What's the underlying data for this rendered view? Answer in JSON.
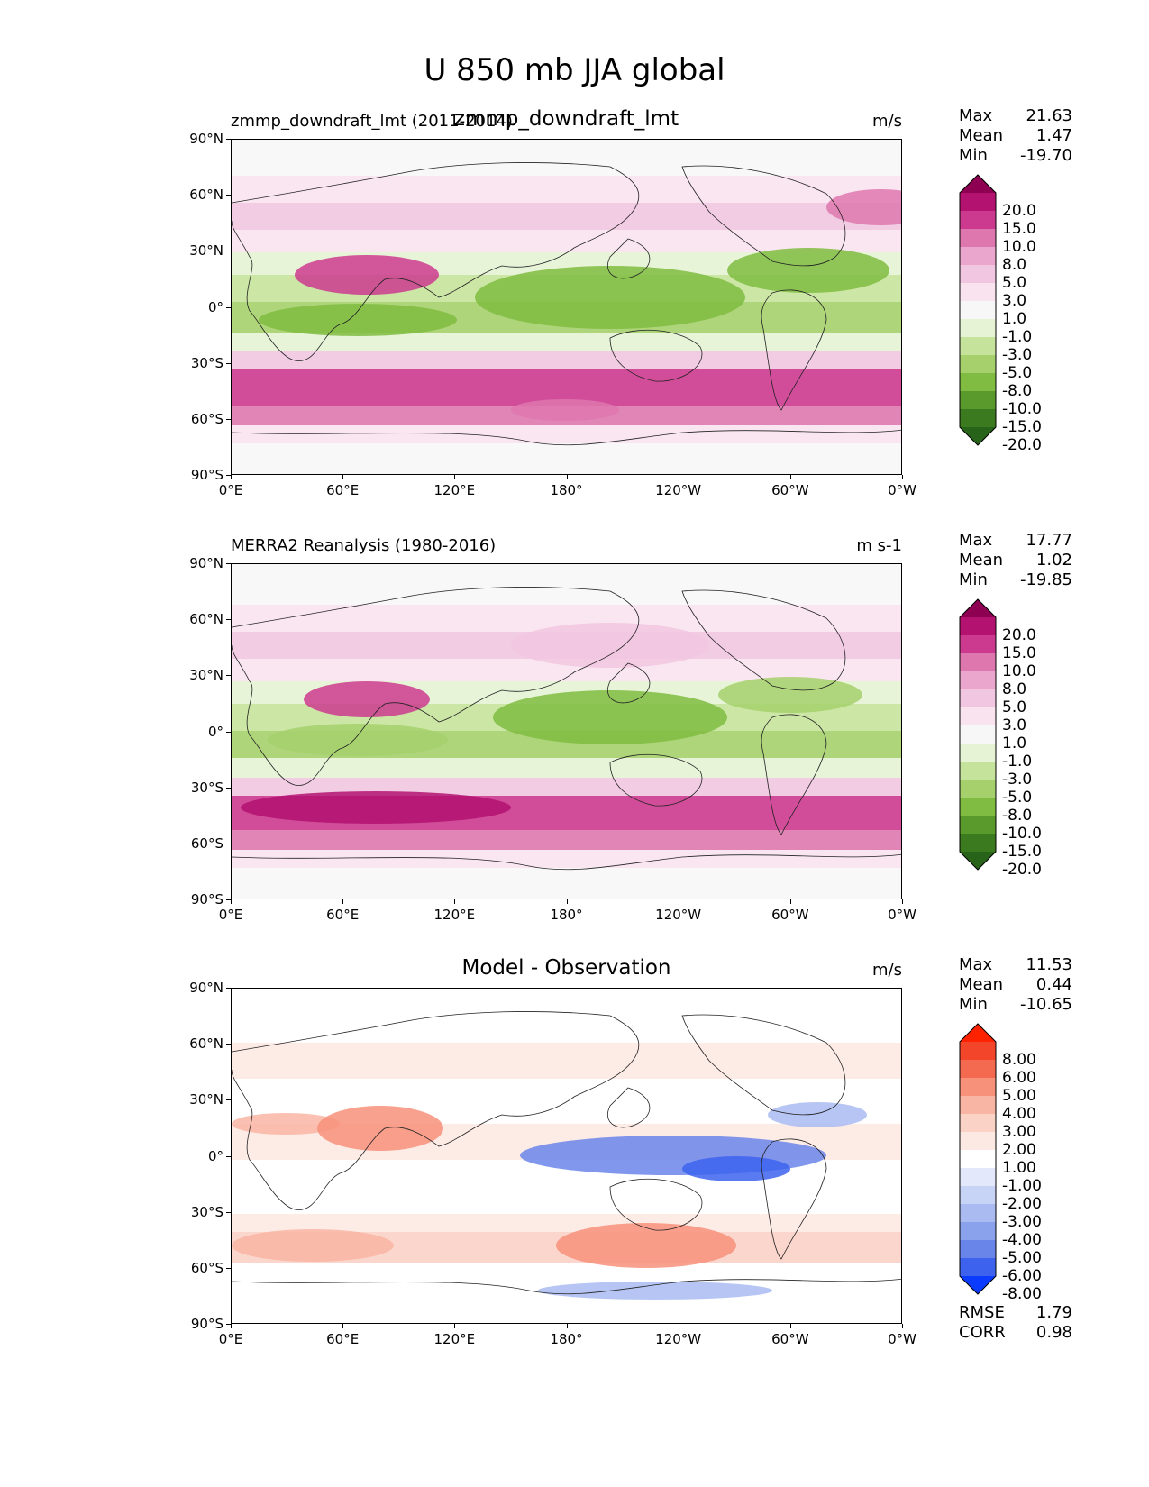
{
  "figure_title": "U 850 mb JJA global",
  "latitude_ticks": [
    "90°N",
    "60°N",
    "30°N",
    "0°",
    "30°S",
    "60°S",
    "90°S"
  ],
  "longitude_ticks": [
    "0°E",
    "60°E",
    "120°E",
    "180°",
    "120°W",
    "60°W",
    "0°W"
  ],
  "chart_data": [
    {
      "type": "heatmap",
      "subplot": "model",
      "left_title": "zmmp_downdraft_lmt (2011-2014)",
      "center_title": "zmmp_downdraft_lmt",
      "units": "m/s",
      "stats": {
        "max_label": "Max",
        "max": "21.63",
        "mean_label": "Mean",
        "mean": "1.47",
        "min_label": "Min",
        "min": "-19.70"
      },
      "colorbar_levels": [
        "20.0",
        "15.0",
        "10.0",
        "8.0",
        "5.0",
        "3.0",
        "1.0",
        "-1.0",
        "-3.0",
        "-5.0",
        "-8.0",
        "-10.0",
        "-15.0",
        "-20.0"
      ],
      "colors": [
        "#8e0152",
        "#b31270",
        "#cc3a8f",
        "#de77ae",
        "#eaa6cd",
        "#f1c6e0",
        "#f9e3ef",
        "#f7f7f7",
        "#e6f3d4",
        "#c6e39b",
        "#a5d06c",
        "#7fbc41",
        "#5a9a2c",
        "#3b7a1e",
        "#276419"
      ],
      "xlim": [
        0,
        360
      ],
      "ylim": [
        -90,
        90
      ]
    },
    {
      "type": "heatmap",
      "subplot": "observation",
      "left_title": "MERRA2 Reanalysis (1980-2016)",
      "center_title": "",
      "units": "m s-1",
      "stats": {
        "max_label": "Max",
        "max": "17.77",
        "mean_label": "Mean",
        "mean": "1.02",
        "min_label": "Min",
        "min": "-19.85"
      },
      "colorbar_levels": [
        "20.0",
        "15.0",
        "10.0",
        "8.0",
        "5.0",
        "3.0",
        "1.0",
        "-1.0",
        "-3.0",
        "-5.0",
        "-8.0",
        "-10.0",
        "-15.0",
        "-20.0"
      ],
      "colors": [
        "#8e0152",
        "#b31270",
        "#cc3a8f",
        "#de77ae",
        "#eaa6cd",
        "#f1c6e0",
        "#f9e3ef",
        "#f7f7f7",
        "#e6f3d4",
        "#c6e39b",
        "#a5d06c",
        "#7fbc41",
        "#5a9a2c",
        "#3b7a1e",
        "#276419"
      ],
      "xlim": [
        0,
        360
      ],
      "ylim": [
        -90,
        90
      ]
    },
    {
      "type": "heatmap",
      "subplot": "difference",
      "left_title": "",
      "center_title": "Model - Observation",
      "units": "m/s",
      "stats": {
        "max_label": "Max",
        "max": "11.53",
        "mean_label": "Mean",
        "mean": "0.44",
        "min_label": "Min",
        "min": "-10.65"
      },
      "metrics": {
        "rmse_label": "RMSE",
        "rmse": "1.79",
        "corr_label": "CORR",
        "corr": "0.98"
      },
      "colorbar_levels": [
        "8.00",
        "6.00",
        "5.00",
        "4.00",
        "3.00",
        "2.00",
        "1.00",
        "-1.00",
        "-2.00",
        "-3.00",
        "-4.00",
        "-5.00",
        "-6.00",
        "-8.00"
      ],
      "colors": [
        "#ff2200",
        "#f2452a",
        "#f46a50",
        "#f7917a",
        "#f9b5a3",
        "#fbd2c6",
        "#fde9e3",
        "#ffffff",
        "#e3e9fb",
        "#c8d4f6",
        "#a9bbf1",
        "#8aa1ec",
        "#6a85ea",
        "#3d63ee",
        "#0b3bff"
      ],
      "xlim": [
        0,
        360
      ],
      "ylim": [
        -90,
        90
      ]
    }
  ]
}
